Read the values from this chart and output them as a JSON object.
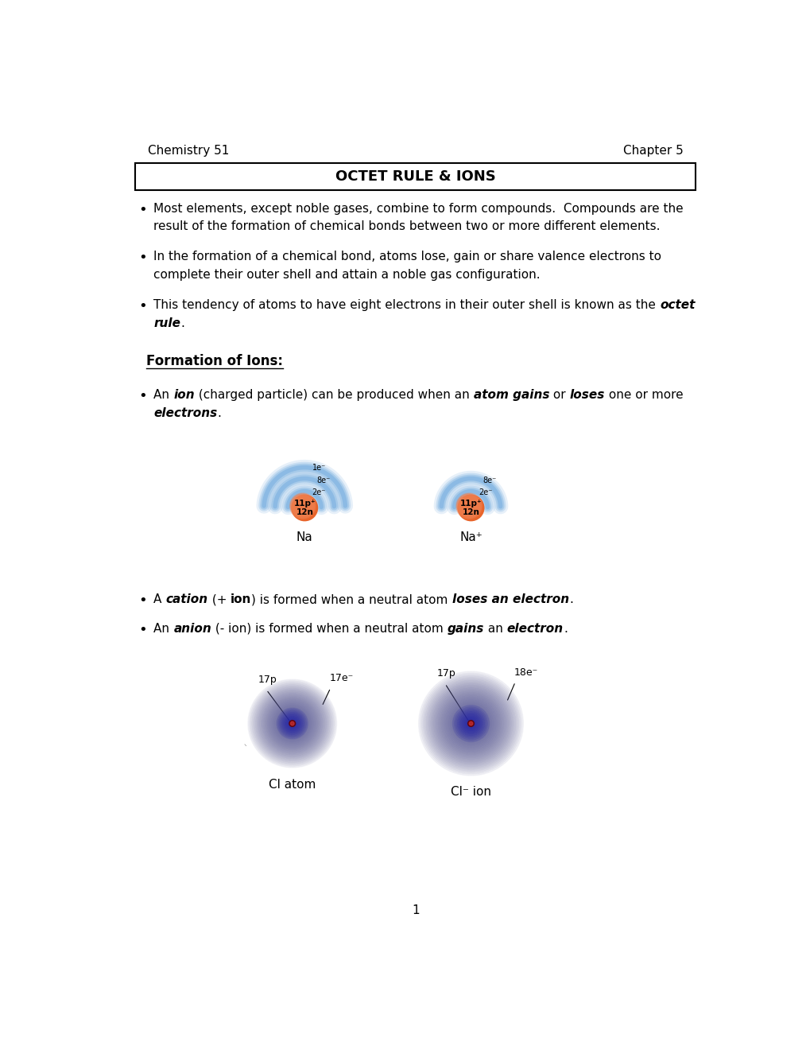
{
  "bg_color": "#ffffff",
  "header_left": "Chemistry 51",
  "header_right": "Chapter 5",
  "title_box_text": "OCTET RULE & IONS",
  "section_header": "Formation of Ions:",
  "na_label": "Na",
  "na_plus_label": "Na⁺",
  "cl_atom_label": "Cl atom",
  "cl_ion_label": "Cl⁻ ion",
  "page_number": "1",
  "font_size_header": 11,
  "font_size_title": 13,
  "font_size_body": 11,
  "font_size_section": 12
}
